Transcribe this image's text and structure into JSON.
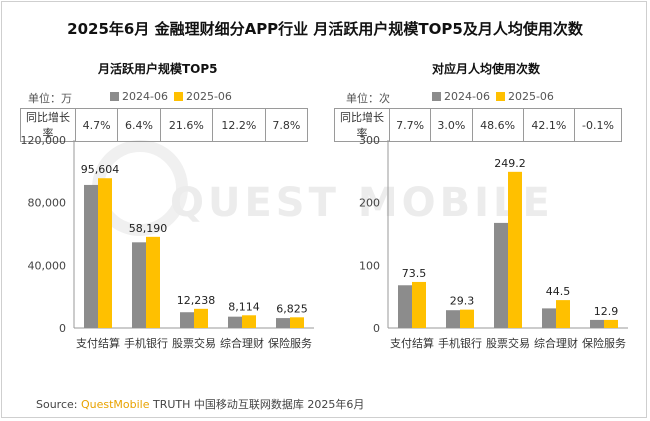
{
  "title": "2025年6月 金融理财细分APP行业 月活跃用户规模TOP5及月人均使用次数",
  "watermark": "QUEST MOBILE",
  "legend_labels": [
    "2024-06",
    "2025-06"
  ],
  "colors": {
    "series_2024": "#8c8c8c",
    "series_2025": "#ffc000"
  },
  "yoy_label": "同比增长率",
  "left_panel": {
    "subtitle": "月活跃用户规模TOP5",
    "unit": "单位：万",
    "yoy": [
      "4.7%",
      "6.4%",
      "21.6%",
      "12.2%",
      "7.8%"
    ]
  },
  "right_panel": {
    "subtitle": "对应月人均使用次数",
    "unit": "单位：次",
    "yoy": [
      "7.7%",
      "3.0%",
      "48.6%",
      "42.1%",
      "-0.1%"
    ]
  },
  "source": {
    "prefix": "Source: ",
    "brand": "QuestMobile",
    "text": " TRUTH 中国移动互联网数据库 2025年6月"
  },
  "chart_data": [
    {
      "type": "bar",
      "title": "月活跃用户规模TOP5",
      "categories": [
        "支付结算",
        "手机银行",
        "股票交易",
        "综合理财",
        "保险服务"
      ],
      "series": [
        {
          "name": "2024-06",
          "values": [
            91312,
            54690,
            10064,
            7232,
            6331
          ]
        },
        {
          "name": "2025-06",
          "values": [
            95604,
            58190,
            12238,
            8114,
            6825
          ]
        }
      ],
      "data_labels": [
        "95,604",
        "58,190",
        "12,238",
        "8,114",
        "6,825"
      ],
      "yticks": [
        "0",
        "40,000",
        "80,000",
        "120,000"
      ],
      "ylim": [
        0,
        120000
      ]
    },
    {
      "type": "bar",
      "title": "对应月人均使用次数",
      "categories": [
        "支付结算",
        "手机银行",
        "股票交易",
        "综合理财",
        "保险服务"
      ],
      "series": [
        {
          "name": "2024-06",
          "values": [
            68.2,
            28.4,
            167.7,
            31.3,
            12.9
          ]
        },
        {
          "name": "2025-06",
          "values": [
            73.5,
            29.3,
            249.2,
            44.5,
            12.9
          ]
        }
      ],
      "data_labels": [
        "73.5",
        "29.3",
        "249.2",
        "44.5",
        "12.9"
      ],
      "yticks": [
        "0",
        "100",
        "200",
        "300"
      ],
      "ylim": [
        0,
        300
      ]
    }
  ]
}
